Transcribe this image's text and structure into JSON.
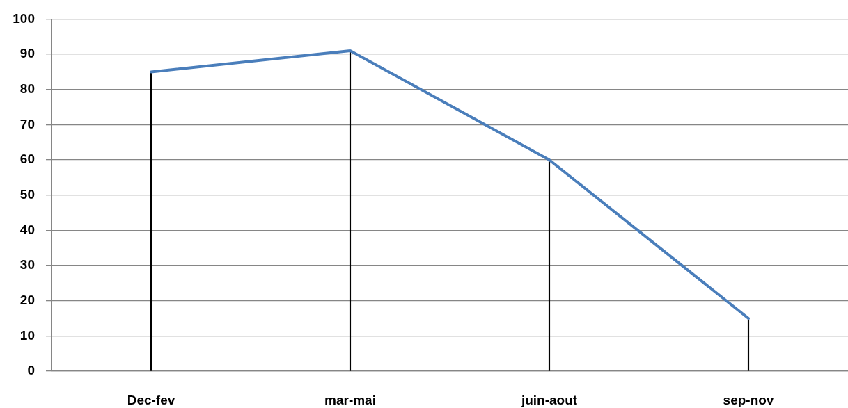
{
  "chart_data": {
    "type": "line",
    "categories": [
      "Dec-fev",
      "mar-mai",
      "juin-aout",
      "sep-nov"
    ],
    "series": [
      {
        "color": "#4a7ebb",
        "values": [
          85,
          91,
          60,
          15
        ]
      },
      {
        "type": "bar",
        "color": "#000000",
        "values": [
          85,
          91,
          60,
          15
        ]
      }
    ],
    "ylim": [
      0,
      100
    ],
    "yticks": [
      0,
      10,
      20,
      30,
      40,
      50,
      60,
      70,
      80,
      90,
      100
    ],
    "grid": "y",
    "marker": "none"
  }
}
